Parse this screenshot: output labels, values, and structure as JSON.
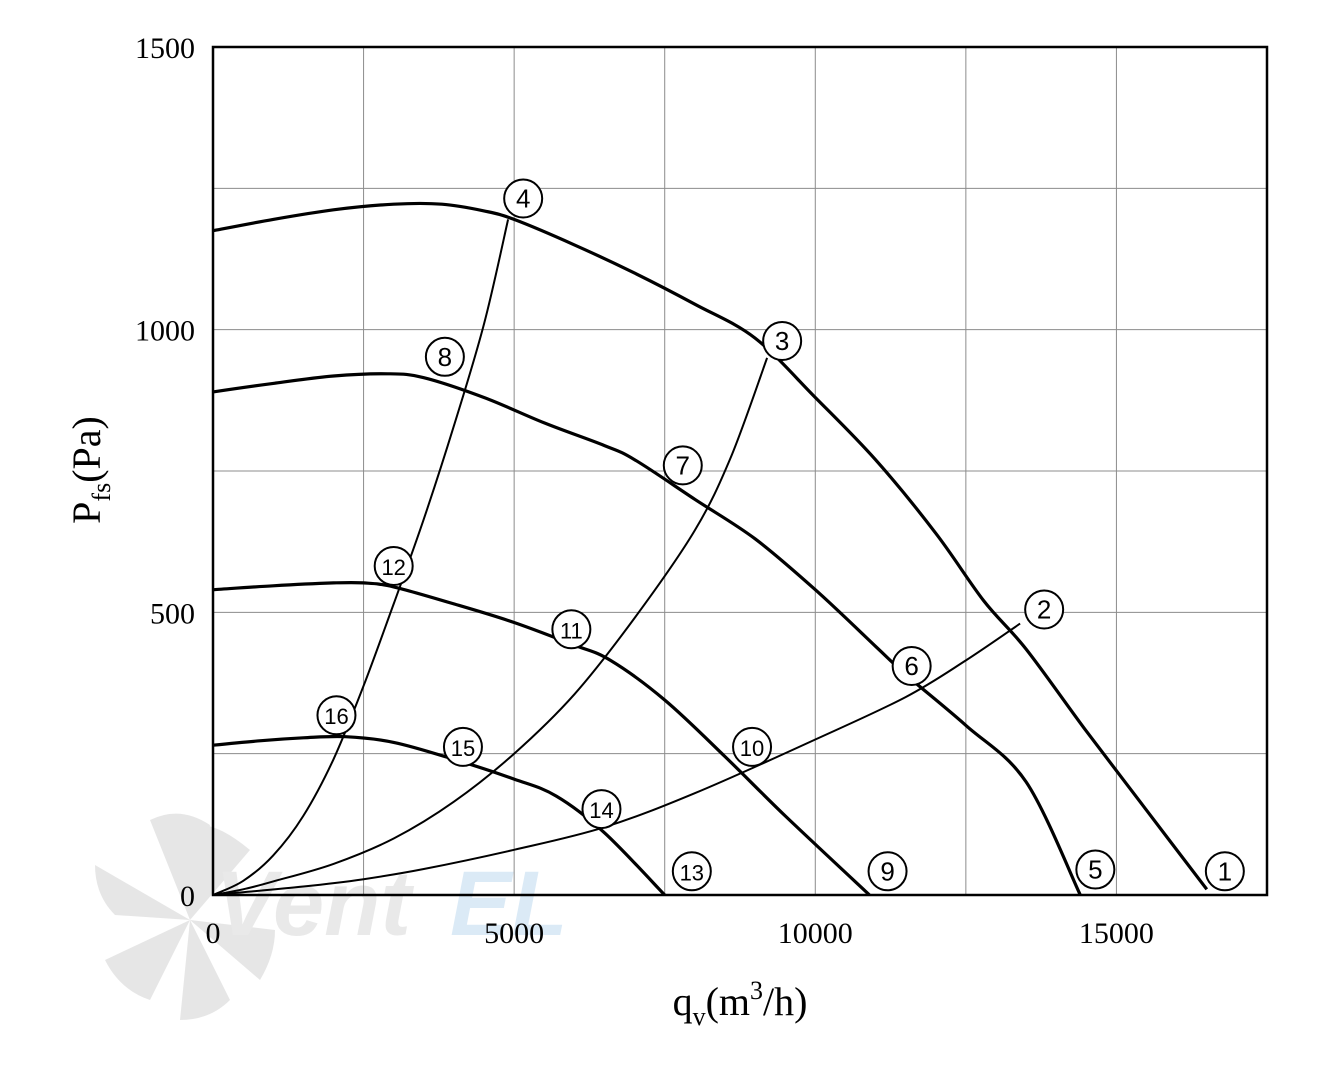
{
  "chart_data": {
    "type": "line",
    "title": "",
    "xlabel": {
      "main": "q",
      "sub": "v",
      "rest": "(m",
      "sup": "3",
      "tail": "/h)"
    },
    "ylabel": {
      "main": "P",
      "sub": "fs",
      "rest": "(Pa)"
    },
    "xlim": [
      0,
      17500
    ],
    "ylim": [
      0,
      1500
    ],
    "x_ticks": [
      0,
      5000,
      10000,
      15000
    ],
    "y_ticks": [
      0,
      500,
      1000,
      1500
    ],
    "x_tick_labels": [
      "0",
      "5000",
      "10000",
      "15000"
    ],
    "y_tick_labels": [
      "0",
      "500",
      "1000",
      "1500"
    ],
    "grid": true,
    "grid_x": [
      2500,
      5000,
      7500,
      10000,
      12500,
      15000
    ],
    "grid_y": [
      250,
      500,
      750,
      1000,
      1250
    ],
    "fan_curves": [
      {
        "points": [
          [
            0,
            1175
          ],
          [
            1000,
            1195
          ],
          [
            2000,
            1212
          ],
          [
            3000,
            1222
          ],
          [
            3800,
            1222
          ],
          [
            4500,
            1210
          ],
          [
            5000,
            1195
          ],
          [
            6000,
            1150
          ],
          [
            7000,
            1100
          ],
          [
            8000,
            1045
          ],
          [
            9000,
            985
          ],
          [
            10000,
            880
          ],
          [
            11000,
            770
          ],
          [
            12000,
            640
          ],
          [
            12800,
            520
          ],
          [
            13500,
            435
          ],
          [
            14500,
            290
          ],
          [
            15500,
            150
          ],
          [
            16500,
            10
          ]
        ]
      },
      {
        "points": [
          [
            0,
            890
          ],
          [
            1000,
            905
          ],
          [
            2000,
            918
          ],
          [
            2900,
            922
          ],
          [
            3500,
            915
          ],
          [
            4500,
            880
          ],
          [
            5500,
            835
          ],
          [
            6500,
            795
          ],
          [
            7000,
            770
          ],
          [
            8000,
            700
          ],
          [
            9000,
            630
          ],
          [
            10000,
            540
          ],
          [
            11000,
            440
          ],
          [
            11500,
            390
          ],
          [
            12500,
            300
          ],
          [
            13500,
            200
          ],
          [
            14400,
            0
          ]
        ]
      },
      {
        "points": [
          [
            0,
            540
          ],
          [
            1000,
            547
          ],
          [
            2000,
            552
          ],
          [
            2500,
            552
          ],
          [
            3000,
            545
          ],
          [
            4000,
            515
          ],
          [
            5000,
            482
          ],
          [
            6000,
            442
          ],
          [
            6600,
            415
          ],
          [
            7500,
            345
          ],
          [
            8500,
            245
          ],
          [
            9500,
            140
          ],
          [
            10900,
            0
          ]
        ]
      },
      {
        "points": [
          [
            0,
            265
          ],
          [
            800,
            273
          ],
          [
            1500,
            278
          ],
          [
            2200,
            280
          ],
          [
            3000,
            270
          ],
          [
            4000,
            240
          ],
          [
            5000,
            205
          ],
          [
            5700,
            175
          ],
          [
            6500,
            110
          ],
          [
            7500,
            0
          ]
        ]
      }
    ],
    "system_curves": [
      {
        "points": [
          [
            0,
            0
          ],
          [
            500,
            5
          ],
          [
            1500,
            15
          ],
          [
            2500,
            28
          ],
          [
            3500,
            46
          ],
          [
            5000,
            80
          ],
          [
            6500,
            120
          ],
          [
            8000,
            180
          ],
          [
            10000,
            275
          ],
          [
            11500,
            350
          ],
          [
            12500,
            415
          ],
          [
            13400,
            480
          ]
        ]
      },
      {
        "points": [
          [
            0,
            0
          ],
          [
            500,
            10
          ],
          [
            1000,
            24
          ],
          [
            2000,
            55
          ],
          [
            3000,
            100
          ],
          [
            4000,
            165
          ],
          [
            5000,
            250
          ],
          [
            6000,
            355
          ],
          [
            7000,
            490
          ],
          [
            8000,
            645
          ],
          [
            8600,
            775
          ],
          [
            9200,
            950
          ]
        ]
      },
      {
        "points": [
          [
            0,
            0
          ],
          [
            500,
            25
          ],
          [
            1000,
            70
          ],
          [
            1500,
            140
          ],
          [
            2000,
            240
          ],
          [
            2500,
            370
          ],
          [
            3000,
            515
          ],
          [
            3500,
            665
          ],
          [
            4000,
            830
          ],
          [
            4500,
            1010
          ],
          [
            4900,
            1195
          ]
        ]
      }
    ],
    "point_labels": [
      {
        "text": "1",
        "x": 16800,
        "y": 42
      },
      {
        "text": "2",
        "x": 13800,
        "y": 505
      },
      {
        "text": "3",
        "x": 9450,
        "y": 980
      },
      {
        "text": "4",
        "x": 5150,
        "y": 1232
      },
      {
        "text": "5",
        "x": 14650,
        "y": 45
      },
      {
        "text": "6",
        "x": 11600,
        "y": 405
      },
      {
        "text": "7",
        "x": 7800,
        "y": 760
      },
      {
        "text": "8",
        "x": 3850,
        "y": 952
      },
      {
        "text": "9",
        "x": 11200,
        "y": 42
      },
      {
        "text": "10",
        "x": 8950,
        "y": 262
      },
      {
        "text": "11",
        "x": 5950,
        "y": 470
      },
      {
        "text": "12",
        "x": 3000,
        "y": 582
      },
      {
        "text": "13",
        "x": 7950,
        "y": 42
      },
      {
        "text": "14",
        "x": 6450,
        "y": 152
      },
      {
        "text": "15",
        "x": 4150,
        "y": 262
      },
      {
        "text": "16",
        "x": 2050,
        "y": 318
      }
    ],
    "watermark": "VentEL"
  }
}
